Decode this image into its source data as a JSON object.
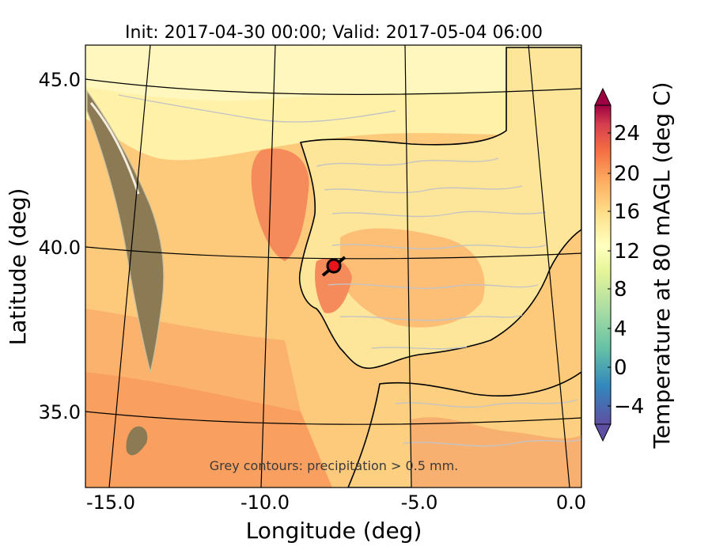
{
  "title": "Init: 2017-04-30 00:00; Valid: 2017-05-04 06:00",
  "xlabel": "Longitude (deg)",
  "ylabel": "Latitude (deg)",
  "x_ticks": [
    "-15.0",
    "-10.0",
    "-5.0",
    "0.0"
  ],
  "y_ticks": [
    "45.0",
    "40.0",
    "35.0"
  ],
  "annotation": "Grey contours: precipitation  > 0.5 mm.",
  "colorbar": {
    "label": "Temperature at 80 mAGL (deg C)",
    "ticks": [
      "24",
      "20",
      "16",
      "12",
      "8",
      "4",
      "0",
      "−4"
    ],
    "range": [
      -6,
      28
    ],
    "colormap": "Spectral_r",
    "extend": "both"
  },
  "map": {
    "lon_range": [
      -16,
      0
    ],
    "lat_range": [
      32.8,
      46
    ],
    "marker": {
      "lon": -7.7,
      "lat": 39.3,
      "color": "#e8141c"
    }
  }
}
